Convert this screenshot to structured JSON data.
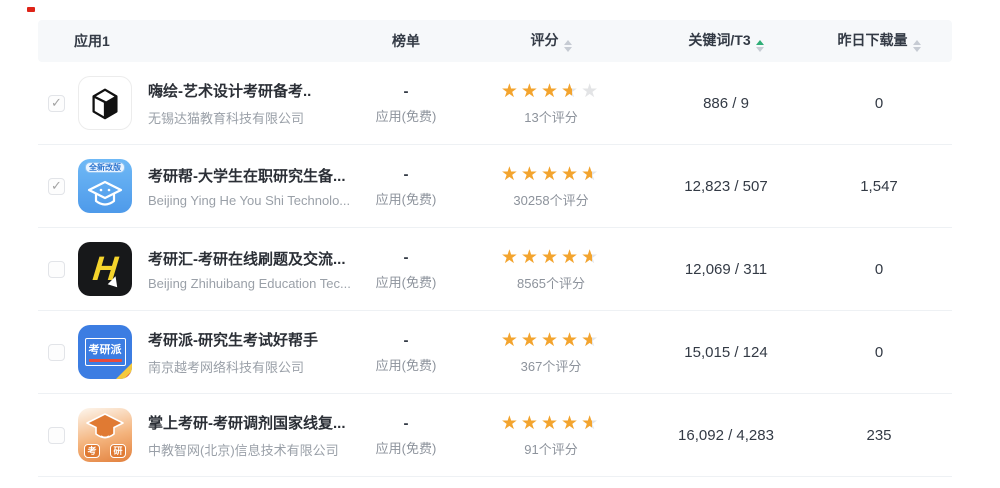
{
  "colors": {
    "header_bg": "#f6f8fa",
    "star_full": "#f3a42e",
    "star_empty": "#e3e4e6",
    "sort_active": "#2fae77",
    "sort_inactive": "#c6cbd3"
  },
  "table": {
    "columns": [
      {
        "key": "app",
        "label": "应用1",
        "sortable": false
      },
      {
        "key": "rank",
        "label": "榜单",
        "sortable": false
      },
      {
        "key": "rating",
        "label": "评分",
        "sortable": true,
        "sort": "none"
      },
      {
        "key": "keywords",
        "label": "关键词/T3",
        "sortable": true,
        "sort": "asc"
      },
      {
        "key": "downloads",
        "label": "昨日下载量",
        "sortable": true,
        "sort": "none"
      }
    ],
    "rows": [
      {
        "checked": true,
        "icon": "haihui-cube-icon",
        "title": "嗨绘-艺术设计考研备考..",
        "developer": "无锡达猫教育科技有限公司",
        "rank_value": "-",
        "rank_category": "应用(免费)",
        "rating": 3.5,
        "rating_count": "13个评分",
        "keywords": "886 / 9",
        "downloads": "0"
      },
      {
        "checked": true,
        "icon": "kaoyanbang-cap-icon",
        "icon_badge": "全新改版",
        "title": "考研帮-大学生在职研究生备...",
        "developer": "Beijing Ying He You Shi Technolo...",
        "rank_value": "-",
        "rank_category": "应用(免费)",
        "rating": 4.5,
        "rating_count": "30258个评分",
        "keywords": "12,823 / 507",
        "downloads": "1,547"
      },
      {
        "checked": false,
        "icon": "kaoyanhui-h-icon",
        "icon_letter": "H",
        "title": "考研汇-考研在线刷题及交流...",
        "developer": "Beijing Zhihuibang Education Tec...",
        "rank_value": "-",
        "rank_category": "应用(免费)",
        "rating": 4.5,
        "rating_count": "8565个评分",
        "keywords": "12,069 / 311",
        "downloads": "0"
      },
      {
        "checked": false,
        "icon": "kaoyanpai-box-icon",
        "icon_label": "考研派",
        "title": "考研派-研究生考试好帮手",
        "developer": "南京越考网络科技有限公司",
        "rank_value": "-",
        "rank_category": "应用(免费)",
        "rating": 4.5,
        "rating_count": "367个评分",
        "keywords": "15,015 / 124",
        "downloads": "0"
      },
      {
        "checked": false,
        "icon": "zhangshang-cap-icon",
        "icon_char_left": "考",
        "icon_char_right": "研",
        "title": "掌上考研-考研调剂国家线复...",
        "developer": "中教智网(北京)信息技术有限公司",
        "rank_value": "-",
        "rank_category": "应用(免费)",
        "rating": 4.5,
        "rating_count": "91个评分",
        "keywords": "16,092 / 4,283",
        "downloads": "235"
      }
    ]
  }
}
